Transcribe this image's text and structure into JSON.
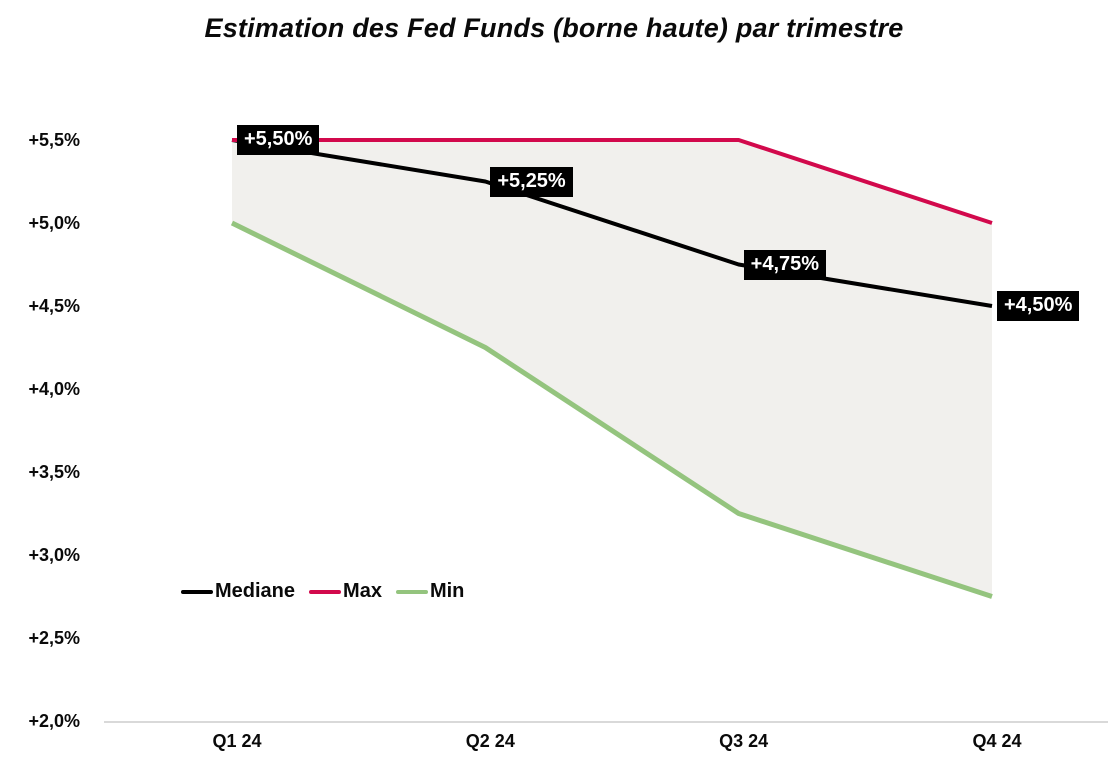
{
  "title": "Estimation des Fed Funds (borne haute) par trimestre",
  "chart_data": {
    "type": "line",
    "title": "Estimation des Fed Funds (borne haute) par trimestre",
    "categories": [
      "Q1 24",
      "Q2 24",
      "Q3 24",
      "Q4 24"
    ],
    "series": [
      {
        "name": "Mediane",
        "color": "#000000",
        "values": [
          5.5,
          5.25,
          4.75,
          4.5
        ]
      },
      {
        "name": "Max",
        "color": "#D2094C",
        "values": [
          5.5,
          5.5,
          5.5,
          5.0
        ]
      },
      {
        "name": "Min",
        "color": "#94C47E",
        "values": [
          5.0,
          4.25,
          3.25,
          2.75
        ]
      }
    ],
    "point_labels": {
      "series": "Mediane",
      "texts": [
        "+5,50%",
        "+5,25%",
        "+4,75%",
        "+4,50%"
      ]
    },
    "y_ticks": [
      {
        "value": 5.5,
        "label": "+5,5%"
      },
      {
        "value": 5.0,
        "label": "+5,0%"
      },
      {
        "value": 4.5,
        "label": "+4,5%"
      },
      {
        "value": 4.0,
        "label": "+4,0%"
      },
      {
        "value": 3.5,
        "label": "+3,5%"
      },
      {
        "value": 3.0,
        "label": "+3,0%"
      },
      {
        "value": 2.5,
        "label": "+2,5%"
      },
      {
        "value": 2.0,
        "label": "+2,0%"
      }
    ],
    "ylim": [
      2.0,
      5.5
    ],
    "xlabel": "",
    "ylabel": "",
    "grid": false,
    "legend_position": "inside-lower-left",
    "legend": [
      "Mediane",
      "Max",
      "Min"
    ],
    "band": {
      "between": [
        "Max",
        "Min"
      ],
      "fill": "#F1F0ED"
    },
    "colors": {
      "axis_line": "#D9D9D9",
      "point_label_bg": "#000000",
      "point_label_text": "#FFFFFF"
    }
  }
}
